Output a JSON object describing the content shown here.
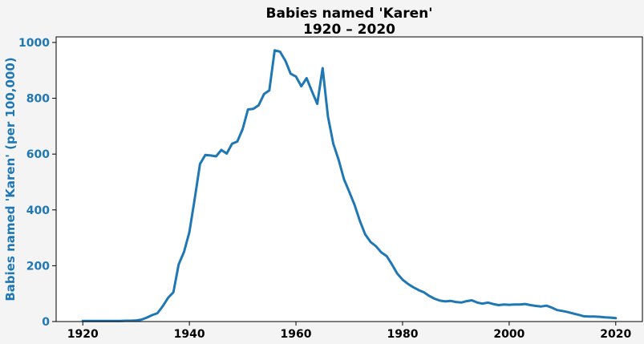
{
  "chart_data": {
    "type": "line",
    "title": "Babies named 'Karen'",
    "subtitle": "1920 – 2020",
    "xlabel": "",
    "ylabel": "Babies named 'Karen' (per 100,000)",
    "xlim": [
      1915,
      2025
    ],
    "ylim": [
      0,
      1020
    ],
    "x_ticks": [
      1920,
      1940,
      1960,
      1980,
      2000,
      2020
    ],
    "y_ticks": [
      0,
      200,
      400,
      600,
      800,
      1000
    ],
    "grid": false,
    "colors": {
      "line": "#1f77b4",
      "ylabel": "#1f77b4",
      "ytick": "#1f77b4",
      "xtick": "#000000",
      "background": "#f4f4f4",
      "plot_background": "#ffffff"
    },
    "series": [
      {
        "x": [
          1920,
          1921,
          1922,
          1923,
          1924,
          1925,
          1926,
          1927,
          1928,
          1929,
          1930,
          1931,
          1932,
          1933,
          1934,
          1935,
          1936,
          1937,
          1938,
          1939,
          1940,
          1941,
          1942,
          1943,
          1944,
          1945,
          1946,
          1947,
          1948,
          1949,
          1950,
          1951,
          1952,
          1953,
          1954,
          1955,
          1956,
          1957,
          1958,
          1959,
          1960,
          1961,
          1962,
          1963,
          1964,
          1965,
          1966,
          1967,
          1968,
          1969,
          1970,
          1971,
          1972,
          1973,
          1974,
          1975,
          1976,
          1977,
          1978,
          1979,
          1980,
          1981,
          1982,
          1983,
          1984,
          1985,
          1986,
          1987,
          1988,
          1989,
          1990,
          1991,
          1992,
          1993,
          1994,
          1995,
          1996,
          1997,
          1998,
          1999,
          2000,
          2001,
          2002,
          2003,
          2004,
          2005,
          2006,
          2007,
          2008,
          2009,
          2010,
          2011,
          2012,
          2013,
          2014,
          2015,
          2016,
          2017,
          2018,
          2019,
          2020
        ],
        "values": [
          2,
          2,
          2,
          2,
          2,
          2,
          2,
          2,
          3,
          3,
          4,
          7,
          14,
          23,
          30,
          55,
          85,
          105,
          205,
          250,
          320,
          440,
          565,
          597,
          595,
          592,
          615,
          602,
          637,
          645,
          690,
          760,
          762,
          775,
          815,
          828,
          972,
          967,
          935,
          888,
          878,
          843,
          872,
          825,
          780,
          908,
          735,
          637,
          580,
          510,
          465,
          418,
          360,
          312,
          285,
          270,
          248,
          235,
          205,
          172,
          150,
          135,
          123,
          113,
          105,
          92,
          82,
          75,
          72,
          74,
          70,
          68,
          73,
          76,
          68,
          64,
          68,
          63,
          59,
          61,
          60,
          61,
          61,
          63,
          59,
          56,
          54,
          57,
          50,
          41,
          38,
          34,
          29,
          24,
          19,
          18,
          18,
          17,
          15,
          14,
          12
        ]
      }
    ]
  }
}
